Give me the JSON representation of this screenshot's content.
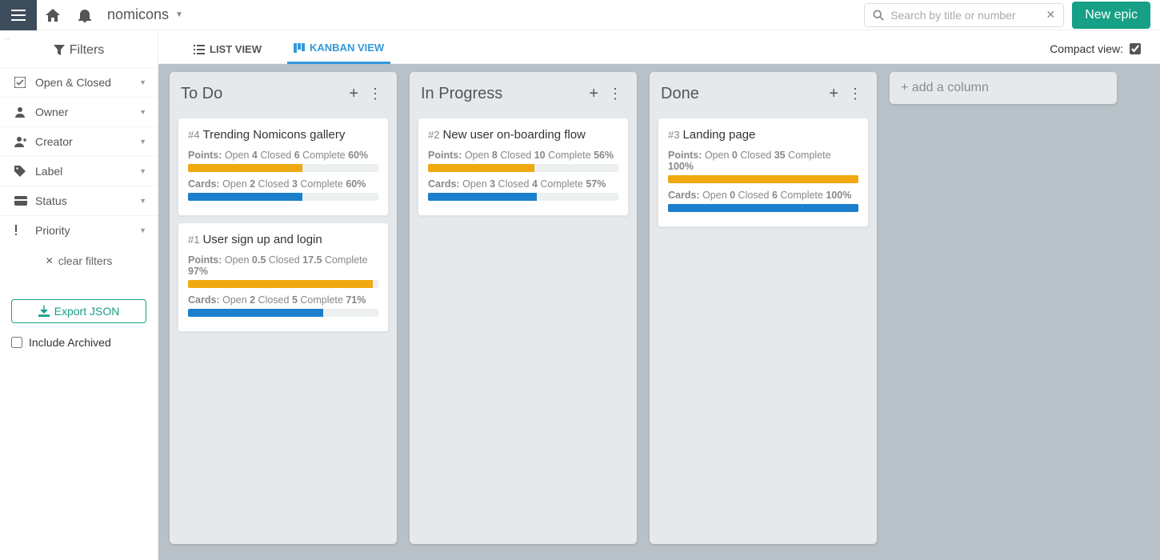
{
  "colors": {
    "teal": "#16a085",
    "blue": "#3498db",
    "board_bg": "#b8c1c8",
    "col_bg": "#e5e9ec",
    "orange_bar": "#f1a912",
    "blue_bar": "#1b7fcc"
  },
  "topbar": {
    "project_name": "nomicons",
    "search_placeholder": "Search by title or number",
    "new_epic_label": "New epic"
  },
  "sidebar": {
    "filters_heading": "Filters",
    "items": [
      {
        "icon": "checklist",
        "label": "Open & Closed"
      },
      {
        "icon": "person",
        "label": "Owner"
      },
      {
        "icon": "person-plus",
        "label": "Creator"
      },
      {
        "icon": "tag",
        "label": "Label"
      },
      {
        "icon": "card",
        "label": "Status"
      },
      {
        "icon": "exclaim",
        "label": "Priority"
      }
    ],
    "clear_label": "clear filters",
    "export_label": "Export JSON",
    "include_archived_label": "Include Archived",
    "include_archived_checked": false
  },
  "viewbar": {
    "list_label": "LIST VIEW",
    "kanban_label": "KANBAN VIEW",
    "compact_label": "Compact view:",
    "compact_checked": true
  },
  "board": {
    "add_column_label": "+ add a column",
    "columns": [
      {
        "title": "To Do",
        "cards": [
          {
            "num": "#4",
            "title": "Trending Nomicons gallery",
            "points": {
              "open": "4",
              "closed": "6",
              "complete_pct": 60
            },
            "cards": {
              "open": "2",
              "closed": "3",
              "complete_pct": 60
            }
          },
          {
            "num": "#1",
            "title": "User sign up and login",
            "points": {
              "open": "0.5",
              "closed": "17.5",
              "complete_pct": 97
            },
            "cards": {
              "open": "2",
              "closed": "5",
              "complete_pct": 71
            }
          }
        ]
      },
      {
        "title": "In Progress",
        "cards": [
          {
            "num": "#2",
            "title": "New user on-boarding flow",
            "points": {
              "open": "8",
              "closed": "10",
              "complete_pct": 56
            },
            "cards": {
              "open": "3",
              "closed": "4",
              "complete_pct": 57
            }
          }
        ]
      },
      {
        "title": "Done",
        "cards": [
          {
            "num": "#3",
            "title": "Landing page",
            "points": {
              "open": "0",
              "closed": "35",
              "complete_pct": 100
            },
            "cards": {
              "open": "0",
              "closed": "6",
              "complete_pct": 100
            }
          }
        ]
      }
    ]
  },
  "labels": {
    "points": "Points:",
    "cards": "Cards:",
    "open": "Open",
    "closed": "Closed",
    "complete": "Complete"
  }
}
